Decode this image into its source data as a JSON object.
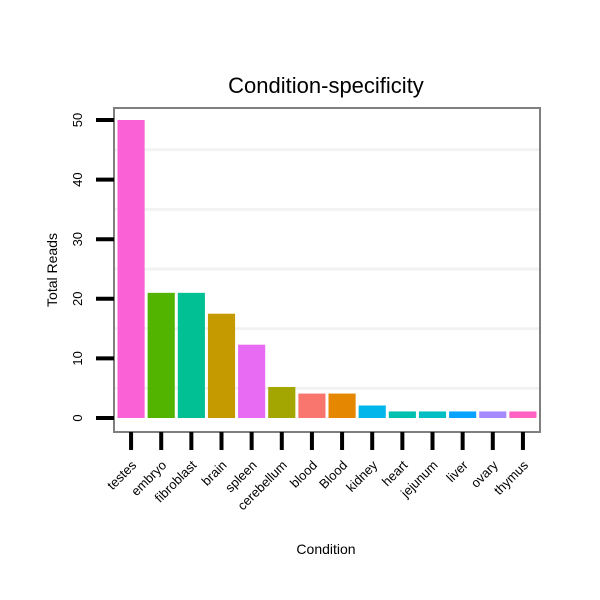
{
  "chart_data": {
    "type": "bar",
    "title": "Condition-specificity",
    "xlabel": "Condition",
    "ylabel": "Total Reads",
    "ylim": [
      0,
      51.5
    ],
    "yticks": [
      0,
      10,
      20,
      30,
      40,
      50
    ],
    "categories": [
      "testes",
      "embryo",
      "fibroblast",
      "brain",
      "spleen",
      "cerebellum",
      "blood",
      "Blood",
      "kidney",
      "heart",
      "jejunum",
      "liver",
      "ovary",
      "thymus"
    ],
    "values": [
      50,
      21,
      21,
      17.5,
      12.3,
      5.2,
      4.1,
      4.1,
      2.1,
      1.1,
      1.1,
      1.1,
      1.1,
      1.1
    ],
    "colors": [
      "#FB61D7",
      "#53B400",
      "#00C094",
      "#C49A00",
      "#E76BF3",
      "#A58AFF00",
      "#F8766D",
      "#E58700",
      "#00B6EB",
      "#00C0AF",
      "#00BFC4",
      "#06A4FF",
      "#A58AFF",
      "#FF61C3"
    ]
  }
}
